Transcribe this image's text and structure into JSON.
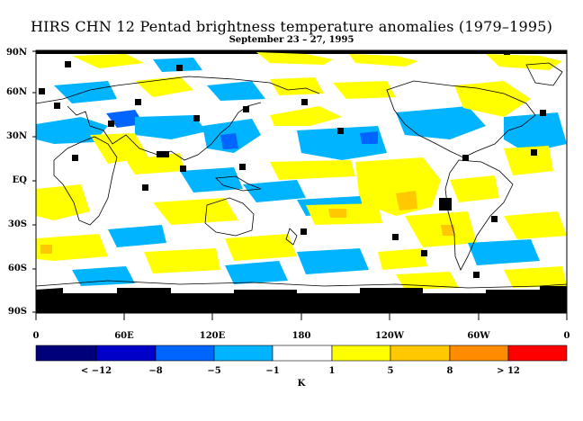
{
  "title": "HIRS CHN 12 Pentad brightness temperature anomalies (1979–1995)",
  "subtitle": "September 23 – 27, 1995",
  "y_axis_labels": [
    "90N",
    "60N",
    "30N",
    "EQ",
    "30S",
    "60S",
    "90S"
  ],
  "x_axis_labels": [
    "0",
    "60E",
    "120E",
    "180",
    "120W",
    "60W",
    "0"
  ],
  "colorbar": {
    "colors": [
      "#00007a",
      "#0000c8",
      "#0064ff",
      "#00b4ff",
      "#ffffff",
      "#ffff00",
      "#ffc800",
      "#ff8c00",
      "#ff0000"
    ],
    "labels": [
      "< −12",
      "−8",
      "−5",
      "−1",
      "1",
      "5",
      "8",
      "> 12"
    ],
    "unit": "K"
  },
  "colors": {
    "cold_anomaly": "#00b4ff",
    "warm_anomaly": "#ffff00",
    "strong_warm": "#ffc800",
    "strong_cold": "#0064ff",
    "missing_data": "#000000"
  }
}
